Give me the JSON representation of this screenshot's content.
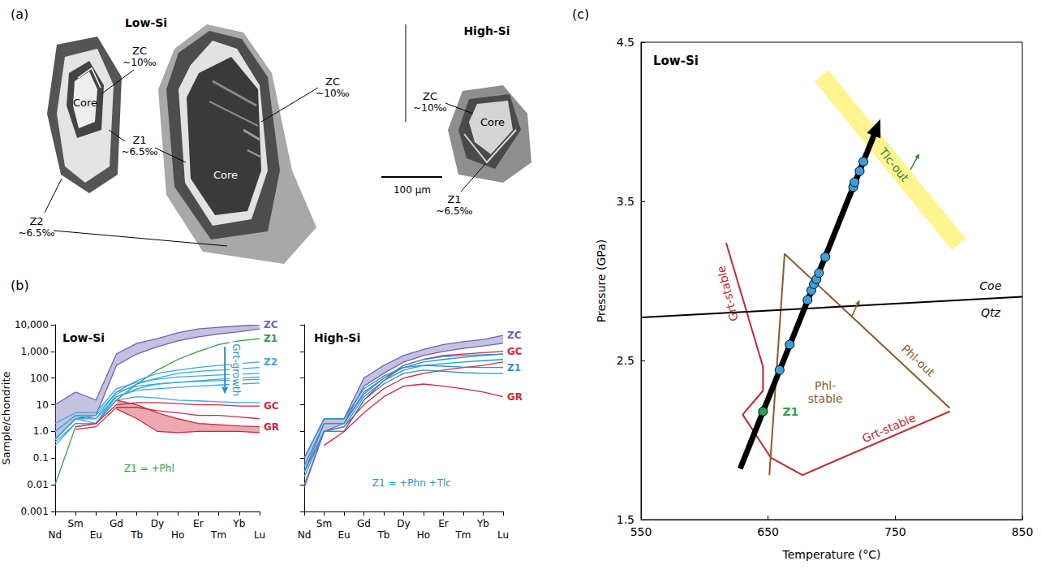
{
  "chart_data": [
    {
      "panel": "(b)",
      "type": "line",
      "title": "Low-Si",
      "y_label": "Sample/chondrite",
      "log": "y",
      "categories": [
        "Nd",
        "Sm",
        "Eu",
        "Gd",
        "Tb",
        "Dy",
        "Ho",
        "Er",
        "Tm",
        "Yb",
        "Lu"
      ],
      "ylim": [
        0.001,
        10000
      ],
      "yticks": [
        0.001,
        0.01,
        0.1,
        {
          "value": 1,
          "label": "1.0"
        },
        10,
        100,
        {
          "value": 1000,
          "label": "1,000"
        },
        {
          "value": 10000,
          "label": "10,000"
        }
      ],
      "series": [
        {
          "name": "ZC",
          "type": "band",
          "color": "#6b63b5",
          "lower": [
            0.5,
            3,
            4,
            300,
            800,
            1500,
            2500,
            3500,
            4500,
            5500,
            7000
          ],
          "upper": [
            10,
            30,
            15,
            800,
            2000,
            3000,
            5000,
            7000,
            8000,
            9000,
            10000
          ]
        },
        {
          "name": "Z1",
          "type": "line",
          "color": "#2e9b47",
          "lines": [
            [
              0.01,
              1.5,
              2,
              15,
              60,
              200,
              500,
              1000,
              1800,
              2500,
              3000
            ]
          ]
        },
        {
          "name": "Z2",
          "type": "line",
          "color": "#3ba7e0",
          "lines": [
            [
              1,
              4,
              3,
              30,
              80,
              150,
              200,
              250,
              300,
              350,
              400
            ],
            [
              0.5,
              3,
              2,
              25,
              60,
              100,
              150,
              180,
              200,
              220,
              250
            ],
            [
              2,
              5,
              5,
              40,
              70,
              90,
              110,
              120,
              130,
              140,
              150
            ],
            [
              0.3,
              2,
              2,
              20,
              40,
              60,
              70,
              80,
              90,
              100,
              110
            ],
            [
              1,
              4,
              4,
              30,
              50,
              60,
              70,
              75,
              80,
              85,
              90
            ],
            [
              0.5,
              3,
              3,
              20,
              35,
              40,
              45,
              50,
              55,
              60,
              65
            ],
            [
              0.4,
              2,
              2,
              15,
              20,
              18,
              15,
              14,
              13,
              12,
              12
            ]
          ]
        },
        {
          "name": "GC",
          "type": "line",
          "color": "#d0283c",
          "lines": [
            [
              null,
              1.5,
              2,
              10,
              12,
              12,
              11,
              10,
              10,
              9,
              9
            ],
            [
              null,
              1.2,
              1.5,
              8,
              8,
              6,
              5,
              4,
              4,
              3.5,
              3
            ]
          ]
        },
        {
          "name": "GR",
          "type": "band",
          "color": "#d0283c",
          "lower": [
            null,
            null,
            null,
            7,
            3,
            1,
            0.9,
            1,
            1,
            1,
            0.9
          ],
          "upper": [
            null,
            null,
            null,
            15,
            10,
            5,
            3,
            2,
            1.8,
            1.6,
            1.5
          ]
        }
      ],
      "annotations": [
        {
          "text": "Grt-growth",
          "color": "#2f8fd0"
        },
        {
          "text": "Z1 = +Phl",
          "color": "#2e9b47"
        }
      ]
    },
    {
      "type": "line",
      "title": "High-Si",
      "log": "y",
      "tick_labels": "x",
      "categories": [
        "Nd",
        "Sm",
        "Eu",
        "Gd",
        "Tb",
        "Dy",
        "Ho",
        "Er",
        "Tm",
        "Yb",
        "Lu"
      ],
      "ylim": [
        0.001,
        10000
      ],
      "yticks": [
        0.001,
        0.01,
        0.1,
        {
          "value": 1,
          "label": "1.0"
        },
        10,
        100,
        {
          "value": 1000,
          "label": "1,000"
        },
        {
          "value": 10000,
          "label": "10,000"
        }
      ],
      "series": [
        {
          "name": "ZC",
          "type": "band",
          "color": "#6b63b5",
          "lower": [
            0.03,
            1,
            2,
            50,
            150,
            400,
            700,
            1000,
            1300,
            1600,
            2000
          ],
          "upper": [
            0.1,
            3,
            3,
            100,
            300,
            700,
            1200,
            1800,
            2300,
            2800,
            4000
          ]
        },
        {
          "name": "GC",
          "type": "line",
          "color": "#d0283c",
          "lines": [
            [
              0.008,
              1,
              1,
              15,
              80,
              300,
              500,
              700,
              800,
              900,
              1000
            ],
            [
              null,
              1,
              1.5,
              10,
              40,
              100,
              150,
              200,
              250,
              300,
              400
            ]
          ]
        },
        {
          "name": "Z1",
          "type": "line",
          "color": "#2f8fd0",
          "lines": [
            [
              0.1,
              3,
              3,
              40,
              120,
              250,
              300,
              280,
              260,
              250,
              250
            ],
            [
              0.05,
              2,
              2,
              30,
              100,
              250,
              400,
              500,
              600,
              700,
              800
            ],
            [
              0.02,
              1,
              1.5,
              20,
              80,
              200,
              300,
              350,
              400,
              450,
              500
            ],
            [
              0.01,
              1,
              1,
              15,
              60,
              150,
              200,
              180,
              160,
              150,
              150
            ],
            [
              0.03,
              2,
              2,
              25,
              100,
              300,
              500,
              650,
              700,
              750,
              800
            ]
          ]
        },
        {
          "name": "GR",
          "type": "line",
          "color": "#d0283c",
          "lines": [
            [
              null,
              0.3,
              1,
              5,
              20,
              50,
              60,
              50,
              40,
              30,
              20
            ]
          ]
        }
      ],
      "annotations": [
        {
          "text": "Z1 = +Phn +Tlc",
          "color": "#2f8fd0"
        }
      ]
    },
    {
      "panel": "(c)",
      "type": "line",
      "title": "Low-Si",
      "x_label": "Temperature (°C)",
      "y_label": "Pressure (GPa)",
      "xlim": [
        550,
        850
      ],
      "xticks": [
        550,
        650,
        750,
        850
      ],
      "ylim": [
        1.5,
        4.5
      ],
      "yticks": [
        1.5,
        2.5,
        3.5,
        4.5
      ],
      "series": [
        {
          "type": "band",
          "color": "#fff27a",
          "labels": [
            "Tlc-out"
          ],
          "x": [
            692,
            800
          ],
          "values": [
            4.29,
            3.23
          ]
        },
        {
          "type": "line",
          "color": "#c0282d",
          "labels": [
            "Grt-stable",
            "Grt-stable"
          ],
          "x": [
            617,
            646,
            646,
            630,
            652,
            677,
            793
          ],
          "values": [
            3.24,
            2.46,
            2.31,
            2.16,
            1.89,
            1.78,
            2.18
          ]
        },
        {
          "type": "line",
          "color": "#8b5a2b",
          "labels": [
            "Phl-stable",
            "Phl-out"
          ],
          "x": [
            651,
            663,
            793
          ],
          "values": [
            1.78,
            3.17,
            2.2
          ]
        },
        {
          "type": "line",
          "color": "#000000",
          "labels": [
            "Coe",
            "Qtz"
          ],
          "x": [
            550,
            850
          ],
          "values": [
            2.77,
            2.9
          ]
        },
        {
          "type": "line",
          "color": "#000000",
          "marker": "arrow",
          "x": [
            628,
            735
          ],
          "values": [
            1.82,
            3.95
          ]
        },
        {
          "type": "scatter",
          "color": "#3aa0dc",
          "x": [
            659,
            667,
            681,
            684,
            686,
            688,
            690,
            695,
            717,
            718,
            722,
            725
          ],
          "values": [
            2.44,
            2.6,
            2.88,
            2.94,
            2.98,
            3.01,
            3.05,
            3.15,
            3.59,
            3.62,
            3.69,
            3.75
          ]
        },
        {
          "type": "scatter",
          "name": "Z1",
          "color": "#2ea04a",
          "x": [
            646
          ],
          "values": [
            2.18
          ]
        }
      ]
    }
  ],
  "diagram": {
    "panel": "(a)",
    "headings": [
      "Low-Si",
      "High-Si"
    ],
    "core": "Core",
    "zc": "ZC",
    "zc_value": "~10‰",
    "z1": "Z1",
    "z1_value": "~6.5‰",
    "z2": "Z2",
    "z2_value": "~6.5‰",
    "scale_bar": "100 µm"
  }
}
